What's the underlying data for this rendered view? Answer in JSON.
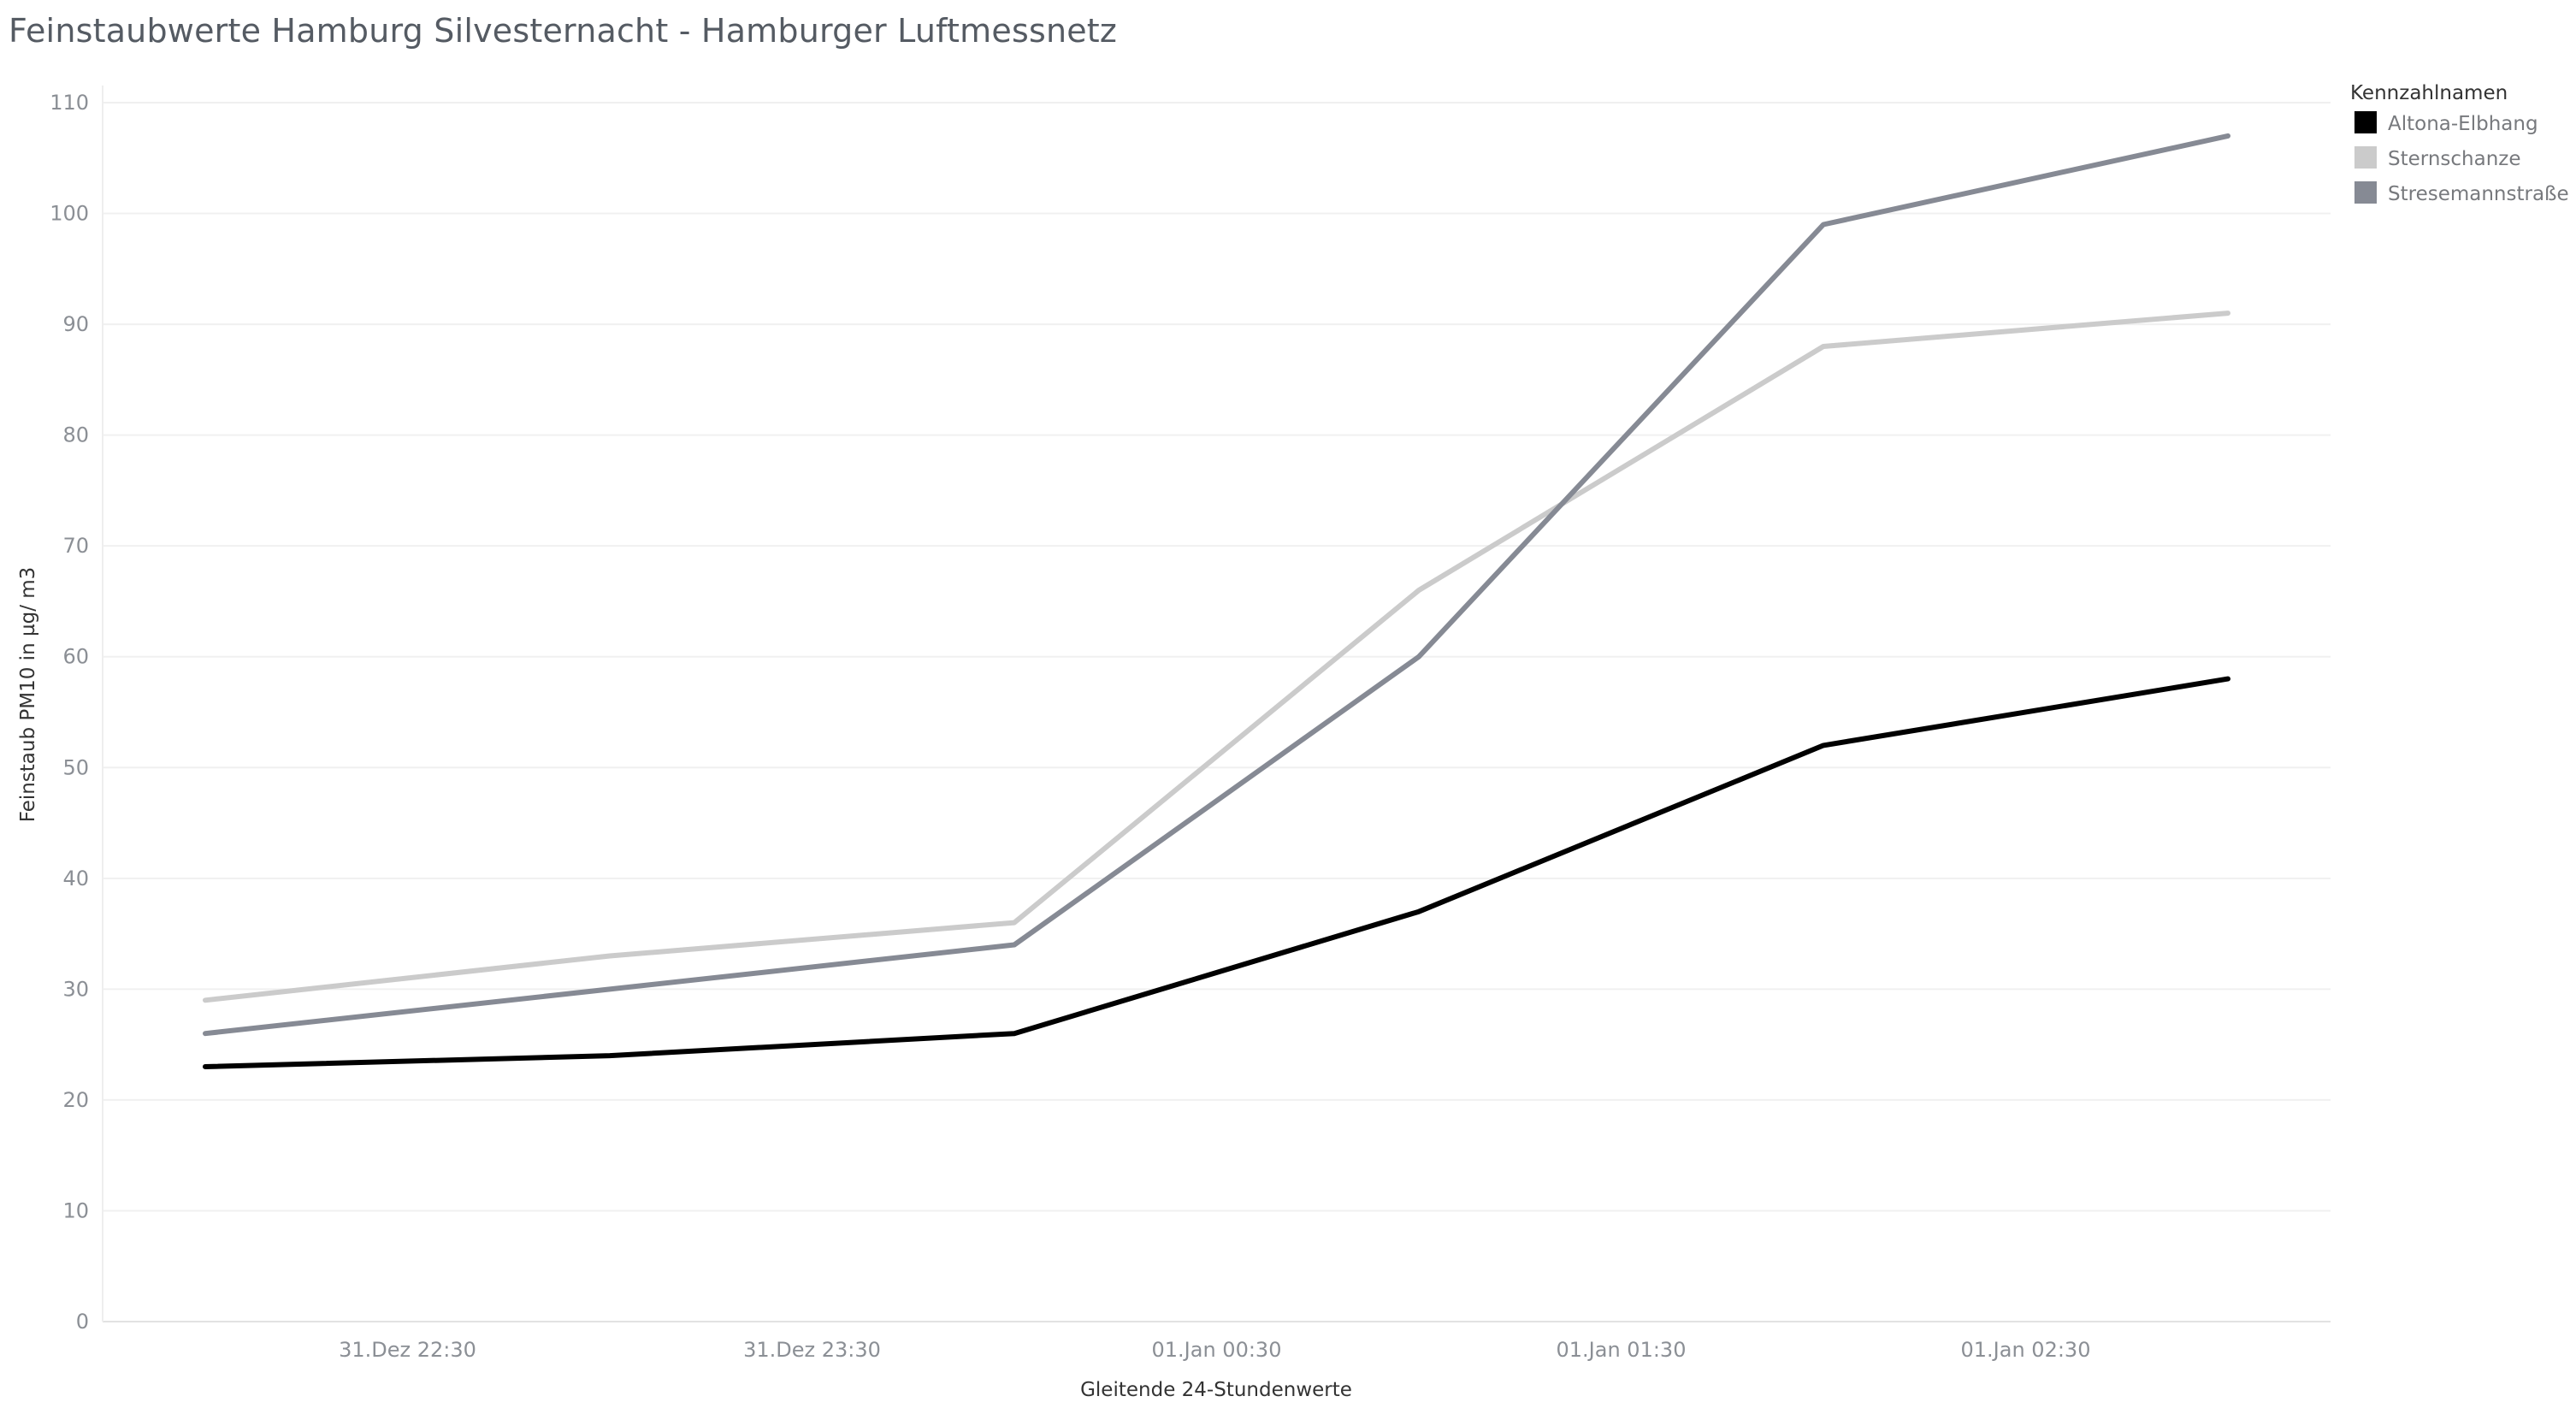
{
  "chart_data": {
    "type": "line",
    "title": "Feinstaubwerte Hamburg Silvesternacht - Hamburger Luftmessnetz",
    "xlabel": "Gleitende 24-Stundenwerte",
    "ylabel": "Feinstaub PM10 in µg/ m3",
    "x_tick_labels": [
      "31.Dez 22:30",
      "31.Dez 23:30",
      "01.Jan 00:30",
      "01.Jan 01:30",
      "01.Jan 02:30"
    ],
    "x": [
      "31.Dez 22:00",
      "31.Dez 23:00",
      "01.Jan 00:00",
      "01.Jan 01:00",
      "01.Jan 02:00",
      "01.Jan 03:00"
    ],
    "ylim": [
      0,
      110
    ],
    "y_ticks": [
      0,
      10,
      20,
      30,
      40,
      50,
      60,
      70,
      80,
      90,
      100,
      110
    ],
    "grid": true,
    "legend_title": "Kennzahlnamen",
    "legend_position": "top-right",
    "series": [
      {
        "name": "Altona-Elbhang",
        "color": "#000000",
        "values": [
          23,
          24,
          26,
          37,
          52,
          58
        ]
      },
      {
        "name": "Sternschanze",
        "color": "#cbcbcb",
        "values": [
          29,
          33,
          36,
          66,
          88,
          91
        ]
      },
      {
        "name": "Stresemannstraße",
        "color": "#868a94",
        "values": [
          26,
          30,
          34,
          60,
          99,
          107
        ]
      }
    ]
  }
}
